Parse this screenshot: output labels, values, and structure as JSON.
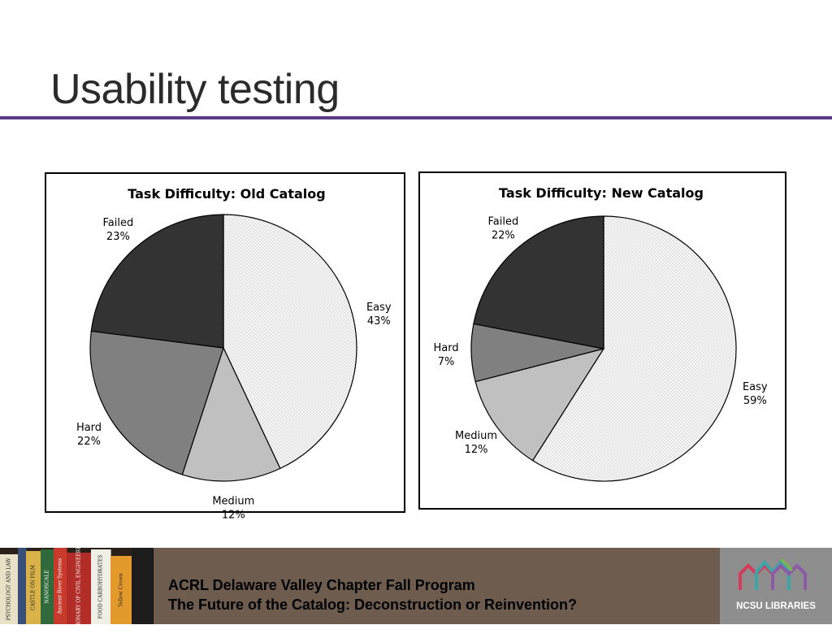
{
  "slide": {
    "title": "Usability testing",
    "accent_color": "#5b3a86"
  },
  "chart_data": [
    {
      "type": "pie",
      "title": "Task Difficulty: Old Catalog",
      "slices": [
        {
          "label": "Easy",
          "value": 43,
          "value_label": "43%",
          "fill": "dots",
          "color": "#f4f4f4"
        },
        {
          "label": "Medium",
          "value": 12,
          "value_label": "12%",
          "fill": "solid",
          "color": "#c0c0c0"
        },
        {
          "label": "Hard",
          "value": 22,
          "value_label": "22%",
          "fill": "solid",
          "color": "#808080"
        },
        {
          "label": "Failed",
          "value": 23,
          "value_label": "23%",
          "fill": "solid",
          "color": "#333333"
        }
      ],
      "start_angle_deg": 0,
      "direction": "clockwise"
    },
    {
      "type": "pie",
      "title": "Task Difficulty: New Catalog",
      "slices": [
        {
          "label": "Easy",
          "value": 59,
          "value_label": "59%",
          "fill": "dots",
          "color": "#f4f4f4"
        },
        {
          "label": "Medium",
          "value": 12,
          "value_label": "12%",
          "fill": "solid",
          "color": "#c0c0c0"
        },
        {
          "label": "Hard",
          "value": 7,
          "value_label": "7%",
          "fill": "solid",
          "color": "#808080"
        },
        {
          "label": "Failed",
          "value": 22,
          "value_label": "22%",
          "fill": "solid",
          "color": "#333333"
        }
      ],
      "start_angle_deg": 0,
      "direction": "clockwise"
    }
  ],
  "footer": {
    "line1": "ACRL Delaware Valley Chapter Fall Program",
    "line2": "The Future of the Catalog: Deconstruction or Reinvention?",
    "logo_text": "NCSU LIBRARIES",
    "books": [
      {
        "text": "PSYCHOLOGY AND LAW",
        "color": "#e8e1c8"
      },
      {
        "text": "",
        "color": "#3a4f77"
      },
      {
        "text": "CASTLE ON FILM",
        "color": "#d9b34a"
      },
      {
        "text": "NANOSCALE",
        "color": "#2f6a3a"
      },
      {
        "text": "Ancient River Systems",
        "color": "#c83a2c"
      },
      {
        "text": "DICTIONARY OF CIVIL ENGINEERING",
        "color": "#b22d28"
      },
      {
        "text": "FOOD CARBOHYDRATES",
        "color": "#f0efe6"
      },
      {
        "text": "Yellow Crown",
        "color": "#e49a2b"
      },
      {
        "text": "",
        "color": "#1d1d1d"
      }
    ]
  }
}
